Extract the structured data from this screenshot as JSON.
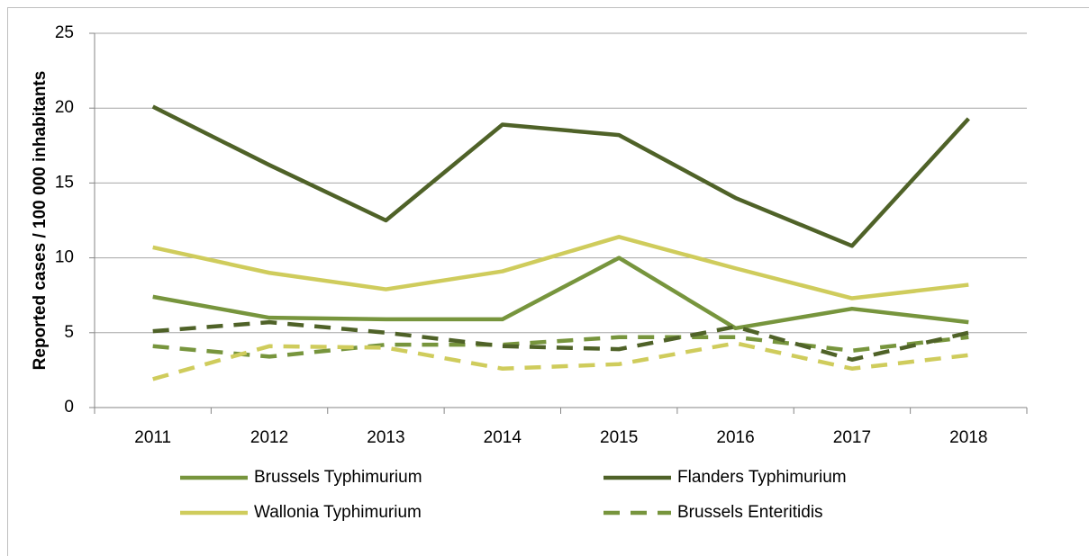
{
  "chart_data": {
    "type": "line",
    "ylabel": "Reported cases / 100 000 inhabitants",
    "categories": [
      "2011",
      "2012",
      "2013",
      "2014",
      "2015",
      "2016",
      "2017",
      "2018"
    ],
    "ylim": [
      0,
      25
    ],
    "yticks": [
      0,
      5,
      10,
      15,
      20,
      25
    ],
    "grid": true,
    "series": [
      {
        "name": "Brussels Typhimurium",
        "color": "#77953d",
        "dashed": false,
        "values": [
          7.4,
          6.0,
          5.9,
          5.9,
          10.0,
          5.3,
          6.6,
          5.7
        ]
      },
      {
        "name": "Flanders Typhimurium",
        "color": "#4f6228",
        "dashed": false,
        "values": [
          20.1,
          16.2,
          12.5,
          18.9,
          18.2,
          14.0,
          10.8,
          19.3
        ]
      },
      {
        "name": "Wallonia Typhimurium",
        "color": "#cfcc5c",
        "dashed": false,
        "values": [
          10.7,
          9.0,
          7.9,
          9.1,
          11.4,
          9.3,
          7.3,
          8.2
        ]
      },
      {
        "name": "Brussels Enteritidis",
        "color": "#77953d",
        "dashed": true,
        "values": [
          4.1,
          3.4,
          4.2,
          4.2,
          4.7,
          4.7,
          3.8,
          4.7
        ]
      },
      {
        "color": "#4f6228",
        "dashed": true,
        "values": [
          5.1,
          5.7,
          5.0,
          4.1,
          3.9,
          5.4,
          3.2,
          5.0
        ]
      },
      {
        "color": "#cfcc5c",
        "dashed": true,
        "values": [
          1.9,
          4.1,
          4.0,
          2.6,
          2.9,
          4.3,
          2.6,
          3.5
        ]
      }
    ]
  }
}
